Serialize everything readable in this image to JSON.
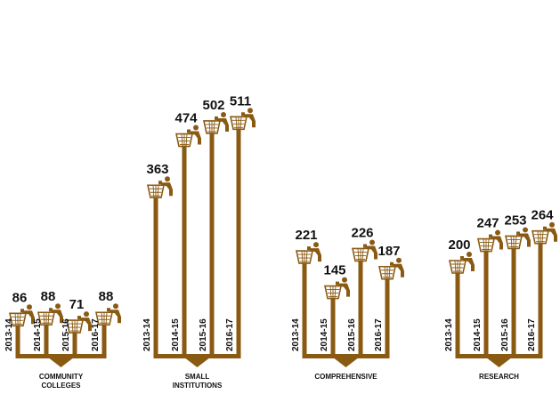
{
  "chart_data": {
    "type": "bar",
    "title": "",
    "xlabel": "",
    "ylabel": "",
    "categories": [
      "2013-14",
      "2014-15",
      "2015-16",
      "2016-17"
    ],
    "groups": [
      {
        "label_lines": [
          "COMMUNITY",
          "COLLEGES"
        ],
        "values": [
          86,
          88,
          71,
          88
        ]
      },
      {
        "label_lines": [
          "SMALL",
          "INSTITUTIONS"
        ],
        "values": [
          363,
          474,
          502,
          511
        ]
      },
      {
        "label_lines": [
          "COMPREHENSIVE"
        ],
        "values": [
          221,
          145,
          226,
          187
        ]
      },
      {
        "label_lines": [
          "RESEARCH"
        ],
        "values": [
          200,
          247,
          253,
          264
        ]
      }
    ],
    "ylim": [
      0,
      520
    ],
    "grid": false,
    "legend": "none",
    "icon": "recycling-person-icon",
    "colors": {
      "bar": "#8a5a13",
      "icon": "#8a5a13"
    }
  }
}
